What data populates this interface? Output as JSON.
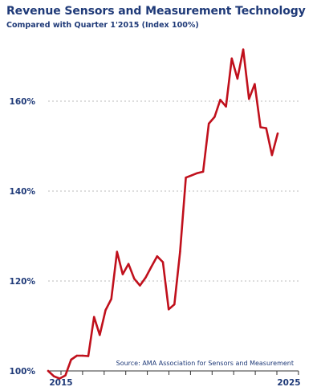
{
  "chart_data": {
    "type": "line",
    "title": "Revenue Sensors and Measurement Technology",
    "subtitle": "Compared with Quarter 1'2015 (Index 100%)",
    "source": "Source: AMA Association  for Sensors and Measurement",
    "y_ticks": [
      "100%",
      "120%",
      "140%",
      "160%"
    ],
    "y_tick_values": [
      100,
      120,
      140,
      160
    ],
    "x_tick_labels": [
      "2015",
      "2025"
    ],
    "ylim": [
      100,
      175
    ],
    "grid": true,
    "colors": {
      "line": "#c0101c",
      "text": "#1f3a78",
      "grid": "#bbbbbb"
    },
    "series": [
      {
        "values": [
          100.0,
          98.8,
          98.3,
          99.0,
          102.5,
          103.4,
          103.4,
          103.3,
          112.0,
          108.0,
          113.5,
          116.0,
          126.5,
          121.5,
          123.8,
          120.5,
          119.0,
          120.8,
          123.2,
          125.5,
          124.2,
          113.7,
          114.8,
          126.5,
          143.0,
          143.5,
          144.0,
          144.3,
          155.0,
          156.5,
          160.3,
          158.8,
          169.5,
          165.0,
          171.5,
          160.5,
          163.8,
          154.2,
          154.0,
          148.0,
          152.8
        ]
      }
    ]
  }
}
